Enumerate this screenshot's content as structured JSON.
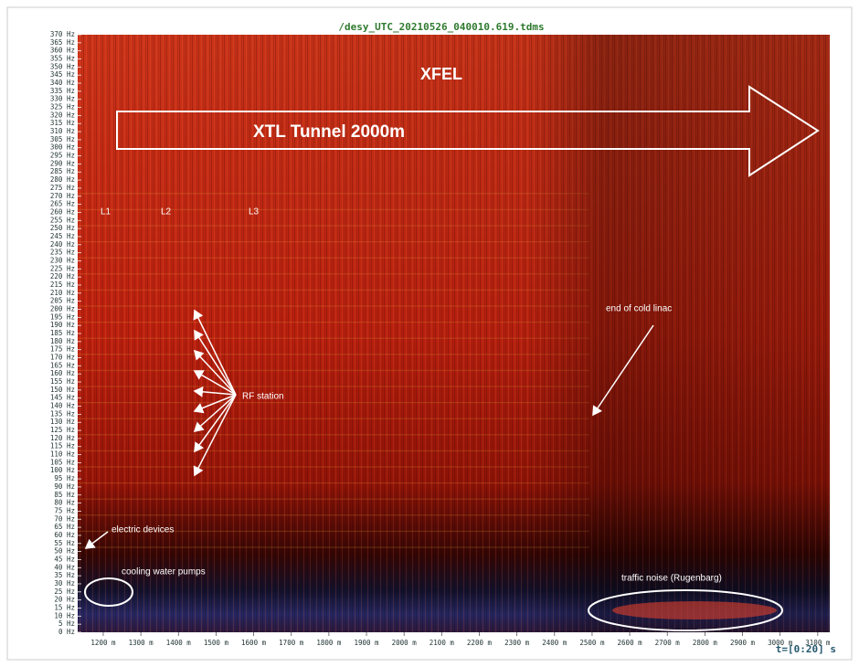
{
  "chart_data": {
    "type": "spectrogram",
    "title": "/desy_UTC_20210526_040010.619.tdms",
    "time_label": "t=[0:20] s",
    "xlim": [
      1132,
      3132
    ],
    "ylim": [
      0,
      370
    ],
    "xticks": [
      {
        "value": 1200,
        "label": "1200 m"
      },
      {
        "value": 1300,
        "label": "1300 m"
      },
      {
        "value": 1400,
        "label": "1400 m"
      },
      {
        "value": 1500,
        "label": "1500 m"
      },
      {
        "value": 1600,
        "label": "1600 m"
      },
      {
        "value": 1700,
        "label": "1700 m"
      },
      {
        "value": 1800,
        "label": "1800 m"
      },
      {
        "value": 1900,
        "label": "1900 m"
      },
      {
        "value": 2000,
        "label": "2000 m"
      },
      {
        "value": 2100,
        "label": "2100 m"
      },
      {
        "value": 2200,
        "label": "2200 m"
      },
      {
        "value": 2300,
        "label": "2300 m"
      },
      {
        "value": 2400,
        "label": "2400 m"
      },
      {
        "value": 2500,
        "label": "2500 m"
      },
      {
        "value": 2600,
        "label": "2600 m"
      },
      {
        "value": 2700,
        "label": "2700 m"
      },
      {
        "value": 2800,
        "label": "2800 m"
      },
      {
        "value": 2900,
        "label": "2900 m"
      },
      {
        "value": 3000,
        "label": "3000 m"
      },
      {
        "value": 3100,
        "label": "3100 m"
      }
    ],
    "yticks": [
      {
        "value": 0,
        "label": "0 Hz"
      },
      {
        "value": 5,
        "label": "5 Hz"
      },
      {
        "value": 10,
        "label": "10 Hz"
      },
      {
        "value": 15,
        "label": "15 Hz"
      },
      {
        "value": 20,
        "label": "20 Hz"
      },
      {
        "value": 25,
        "label": "25 Hz"
      },
      {
        "value": 30,
        "label": "30 Hz"
      },
      {
        "value": 35,
        "label": "35 Hz"
      },
      {
        "value": 40,
        "label": "40 Hz"
      },
      {
        "value": 45,
        "label": "45 Hz"
      },
      {
        "value": 50,
        "label": "50 Hz"
      },
      {
        "value": 55,
        "label": "55 Hz"
      },
      {
        "value": 60,
        "label": "60 Hz"
      },
      {
        "value": 65,
        "label": "65 Hz"
      },
      {
        "value": 70,
        "label": "70 Hz"
      },
      {
        "value": 75,
        "label": "75 Hz"
      },
      {
        "value": 80,
        "label": "80 Hz"
      },
      {
        "value": 85,
        "label": "85 Hz"
      },
      {
        "value": 90,
        "label": "90 Hz"
      },
      {
        "value": 95,
        "label": "95 Hz"
      },
      {
        "value": 100,
        "label": "100 Hz"
      },
      {
        "value": 105,
        "label": "105 Hz"
      },
      {
        "value": 110,
        "label": "110 Hz"
      },
      {
        "value": 115,
        "label": "115 Hz"
      },
      {
        "value": 120,
        "label": "120 Hz"
      },
      {
        "value": 125,
        "label": "125 Hz"
      },
      {
        "value": 130,
        "label": "130 Hz"
      },
      {
        "value": 135,
        "label": "135 Hz"
      },
      {
        "value": 140,
        "label": "140 Hz"
      },
      {
        "value": 145,
        "label": "145 Hz"
      },
      {
        "value": 150,
        "label": "150 Hz"
      },
      {
        "value": 155,
        "label": "155 Hz"
      },
      {
        "value": 160,
        "label": "160 Hz"
      },
      {
        "value": 165,
        "label": "165 Hz"
      },
      {
        "value": 170,
        "label": "170 Hz"
      },
      {
        "value": 175,
        "label": "175 Hz"
      },
      {
        "value": 180,
        "label": "180 Hz"
      },
      {
        "value": 185,
        "label": "185 Hz"
      },
      {
        "value": 190,
        "label": "190 Hz"
      },
      {
        "value": 195,
        "label": "195 Hz"
      },
      {
        "value": 200,
        "label": "200 Hz"
      },
      {
        "value": 205,
        "label": "205 Hz"
      },
      {
        "value": 210,
        "label": "210 Hz"
      },
      {
        "value": 215,
        "label": "215 Hz"
      },
      {
        "value": 220,
        "label": "220 Hz"
      },
      {
        "value": 225,
        "label": "225 Hz"
      },
      {
        "value": 230,
        "label": "230 Hz"
      },
      {
        "value": 235,
        "label": "235 Hz"
      },
      {
        "value": 240,
        "label": "240 Hz"
      },
      {
        "value": 245,
        "label": "245 Hz"
      },
      {
        "value": 250,
        "label": "250 Hz"
      },
      {
        "value": 255,
        "label": "255 Hz"
      },
      {
        "value": 260,
        "label": "260 Hz"
      },
      {
        "value": 265,
        "label": "265 Hz"
      },
      {
        "value": 270,
        "label": "270 Hz"
      },
      {
        "value": 275,
        "label": "275 Hz"
      },
      {
        "value": 280,
        "label": "280 Hz"
      },
      {
        "value": 285,
        "label": "285 Hz"
      },
      {
        "value": 290,
        "label": "290 Hz"
      },
      {
        "value": 295,
        "label": "295 Hz"
      },
      {
        "value": 300,
        "label": "300 Hz"
      },
      {
        "value": 305,
        "label": "305 Hz"
      },
      {
        "value": 310,
        "label": "310 Hz"
      },
      {
        "value": 315,
        "label": "315 Hz"
      },
      {
        "value": 320,
        "label": "320 Hz"
      },
      {
        "value": 325,
        "label": "325 Hz"
      },
      {
        "value": 330,
        "label": "330 Hz"
      },
      {
        "value": 335,
        "label": "335 Hz"
      },
      {
        "value": 340,
        "label": "340 Hz"
      },
      {
        "value": 345,
        "label": "345 Hz"
      },
      {
        "value": 350,
        "label": "350 Hz"
      },
      {
        "value": 355,
        "label": "355 Hz"
      },
      {
        "value": 360,
        "label": "360 Hz"
      },
      {
        "value": 365,
        "label": "365 Hz"
      },
      {
        "value": 370,
        "label": "370 Hz"
      }
    ],
    "annotations": [
      "XFEL",
      "XTL Tunnel 2000m",
      "L1",
      "L2",
      "L3",
      "RF station",
      "end of cold linac",
      "electric devices",
      "cooling water pumps",
      "traffic noise (Rugenbarg)"
    ]
  }
}
